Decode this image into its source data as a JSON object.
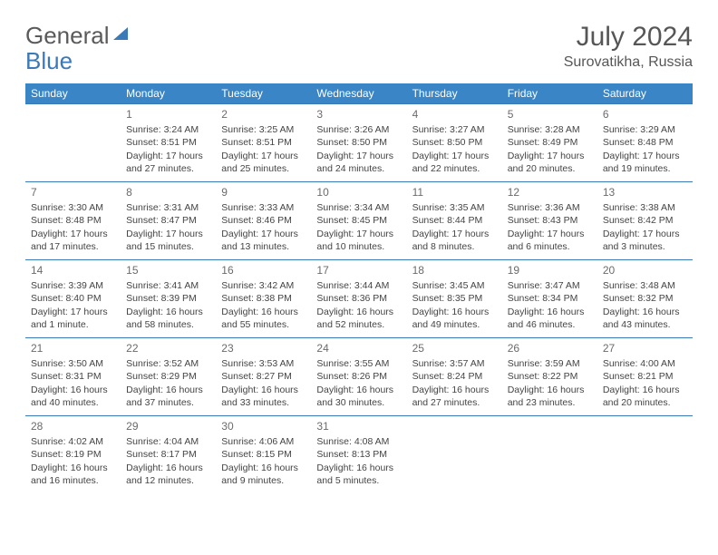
{
  "brand": {
    "part1": "General",
    "part2": "Blue"
  },
  "title": "July 2024",
  "location": "Surovatikha, Russia",
  "colors": {
    "header_bg": "#3a85c6",
    "header_text": "#ffffff",
    "border": "#3a7ab8",
    "text": "#444444",
    "title_color": "#565656"
  },
  "day_headers": [
    "Sunday",
    "Monday",
    "Tuesday",
    "Wednesday",
    "Thursday",
    "Friday",
    "Saturday"
  ],
  "weeks": [
    [
      null,
      {
        "n": "1",
        "sr": "3:24 AM",
        "ss": "8:51 PM",
        "dl": "17 hours and 27 minutes."
      },
      {
        "n": "2",
        "sr": "3:25 AM",
        "ss": "8:51 PM",
        "dl": "17 hours and 25 minutes."
      },
      {
        "n": "3",
        "sr": "3:26 AM",
        "ss": "8:50 PM",
        "dl": "17 hours and 24 minutes."
      },
      {
        "n": "4",
        "sr": "3:27 AM",
        "ss": "8:50 PM",
        "dl": "17 hours and 22 minutes."
      },
      {
        "n": "5",
        "sr": "3:28 AM",
        "ss": "8:49 PM",
        "dl": "17 hours and 20 minutes."
      },
      {
        "n": "6",
        "sr": "3:29 AM",
        "ss": "8:48 PM",
        "dl": "17 hours and 19 minutes."
      }
    ],
    [
      {
        "n": "7",
        "sr": "3:30 AM",
        "ss": "8:48 PM",
        "dl": "17 hours and 17 minutes."
      },
      {
        "n": "8",
        "sr": "3:31 AM",
        "ss": "8:47 PM",
        "dl": "17 hours and 15 minutes."
      },
      {
        "n": "9",
        "sr": "3:33 AM",
        "ss": "8:46 PM",
        "dl": "17 hours and 13 minutes."
      },
      {
        "n": "10",
        "sr": "3:34 AM",
        "ss": "8:45 PM",
        "dl": "17 hours and 10 minutes."
      },
      {
        "n": "11",
        "sr": "3:35 AM",
        "ss": "8:44 PM",
        "dl": "17 hours and 8 minutes."
      },
      {
        "n": "12",
        "sr": "3:36 AM",
        "ss": "8:43 PM",
        "dl": "17 hours and 6 minutes."
      },
      {
        "n": "13",
        "sr": "3:38 AM",
        "ss": "8:42 PM",
        "dl": "17 hours and 3 minutes."
      }
    ],
    [
      {
        "n": "14",
        "sr": "3:39 AM",
        "ss": "8:40 PM",
        "dl": "17 hours and 1 minute."
      },
      {
        "n": "15",
        "sr": "3:41 AM",
        "ss": "8:39 PM",
        "dl": "16 hours and 58 minutes."
      },
      {
        "n": "16",
        "sr": "3:42 AM",
        "ss": "8:38 PM",
        "dl": "16 hours and 55 minutes."
      },
      {
        "n": "17",
        "sr": "3:44 AM",
        "ss": "8:36 PM",
        "dl": "16 hours and 52 minutes."
      },
      {
        "n": "18",
        "sr": "3:45 AM",
        "ss": "8:35 PM",
        "dl": "16 hours and 49 minutes."
      },
      {
        "n": "19",
        "sr": "3:47 AM",
        "ss": "8:34 PM",
        "dl": "16 hours and 46 minutes."
      },
      {
        "n": "20",
        "sr": "3:48 AM",
        "ss": "8:32 PM",
        "dl": "16 hours and 43 minutes."
      }
    ],
    [
      {
        "n": "21",
        "sr": "3:50 AM",
        "ss": "8:31 PM",
        "dl": "16 hours and 40 minutes."
      },
      {
        "n": "22",
        "sr": "3:52 AM",
        "ss": "8:29 PM",
        "dl": "16 hours and 37 minutes."
      },
      {
        "n": "23",
        "sr": "3:53 AM",
        "ss": "8:27 PM",
        "dl": "16 hours and 33 minutes."
      },
      {
        "n": "24",
        "sr": "3:55 AM",
        "ss": "8:26 PM",
        "dl": "16 hours and 30 minutes."
      },
      {
        "n": "25",
        "sr": "3:57 AM",
        "ss": "8:24 PM",
        "dl": "16 hours and 27 minutes."
      },
      {
        "n": "26",
        "sr": "3:59 AM",
        "ss": "8:22 PM",
        "dl": "16 hours and 23 minutes."
      },
      {
        "n": "27",
        "sr": "4:00 AM",
        "ss": "8:21 PM",
        "dl": "16 hours and 20 minutes."
      }
    ],
    [
      {
        "n": "28",
        "sr": "4:02 AM",
        "ss": "8:19 PM",
        "dl": "16 hours and 16 minutes."
      },
      {
        "n": "29",
        "sr": "4:04 AM",
        "ss": "8:17 PM",
        "dl": "16 hours and 12 minutes."
      },
      {
        "n": "30",
        "sr": "4:06 AM",
        "ss": "8:15 PM",
        "dl": "16 hours and 9 minutes."
      },
      {
        "n": "31",
        "sr": "4:08 AM",
        "ss": "8:13 PM",
        "dl": "16 hours and 5 minutes."
      },
      null,
      null,
      null
    ]
  ],
  "labels": {
    "sunrise": "Sunrise:",
    "sunset": "Sunset:",
    "daylight": "Daylight:"
  }
}
